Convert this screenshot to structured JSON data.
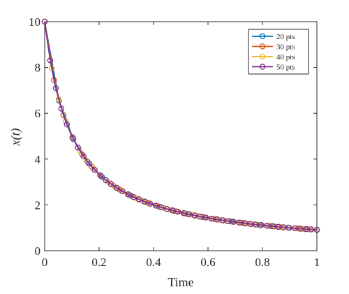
{
  "chart_data": {
    "type": "line",
    "title": "",
    "xlabel": "Time",
    "ylabel": "x(t)",
    "xlim": [
      0,
      1
    ],
    "ylim": [
      0,
      10
    ],
    "xticks": [
      0,
      0.2,
      0.4,
      0.6,
      0.8,
      1
    ],
    "yticks": [
      0,
      2,
      4,
      6,
      8,
      10
    ],
    "x_tick_labels": [
      "0",
      "0.2",
      "0.4",
      "0.6",
      "0.8",
      "1"
    ],
    "y_tick_labels": [
      "0",
      "2",
      "4",
      "6",
      "8",
      "10"
    ],
    "grid": false,
    "legend_position": "top-right",
    "marker": "circle",
    "function_note": "x(t) = 10/(1+10t)",
    "series": [
      {
        "name": "20 pts",
        "color": "#0072BD",
        "x": [
          0,
          0.0526,
          0.1053,
          0.1579,
          0.2105,
          0.2632,
          0.3158,
          0.3684,
          0.4211,
          0.4737,
          0.5263,
          0.5789,
          0.6316,
          0.6842,
          0.7368,
          0.7895,
          0.8421,
          0.8947,
          0.9474,
          1
        ],
        "y": [
          10,
          6.55,
          4.87,
          3.88,
          3.22,
          2.75,
          2.41,
          2.14,
          1.92,
          1.74,
          1.6,
          1.47,
          1.37,
          1.28,
          1.19,
          1.12,
          1.06,
          1.01,
          0.95,
          0.91
        ]
      },
      {
        "name": "30 pts",
        "color": "#D95319",
        "x": [
          0,
          0.0345,
          0.069,
          0.1034,
          0.1379,
          0.1724,
          0.2069,
          0.2414,
          0.2759,
          0.3103,
          0.3448,
          0.3793,
          0.4138,
          0.4483,
          0.4828,
          0.5172,
          0.5517,
          0.5862,
          0.6207,
          0.6552,
          0.6897,
          0.7241,
          0.7586,
          0.7931,
          0.8276,
          0.8621,
          0.8966,
          0.931,
          0.9655,
          1
        ],
        "y": [
          10,
          7.44,
          5.92,
          4.92,
          4.2,
          3.67,
          3.26,
          2.93,
          2.66,
          2.44,
          2.25,
          2.09,
          1.95,
          1.82,
          1.72,
          1.62,
          1.53,
          1.46,
          1.39,
          1.32,
          1.27,
          1.21,
          1.16,
          1.12,
          1.08,
          1.04,
          1.0,
          0.97,
          0.94,
          0.91
        ]
      },
      {
        "name": "40 pts",
        "color": "#EDB120",
        "x": [
          0,
          0.0256,
          0.0513,
          0.0769,
          0.1026,
          0.1282,
          0.1538,
          0.1795,
          0.2051,
          0.2308,
          0.2564,
          0.2821,
          0.3077,
          0.3333,
          0.359,
          0.3846,
          0.4103,
          0.4359,
          0.4615,
          0.4872,
          0.5128,
          0.5385,
          0.5641,
          0.5897,
          0.6154,
          0.641,
          0.6667,
          0.6923,
          0.7179,
          0.7436,
          0.7692,
          0.7949,
          0.8205,
          0.8462,
          0.8718,
          0.8974,
          0.9231,
          0.9487,
          0.9744,
          1
        ],
        "y": [
          10,
          7.96,
          6.61,
          5.65,
          4.94,
          4.38,
          3.94,
          3.58,
          3.28,
          3.02,
          2.81,
          2.62,
          2.45,
          2.31,
          2.18,
          2.06,
          1.96,
          1.87,
          1.78,
          1.7,
          1.63,
          1.57,
          1.51,
          1.45,
          1.4,
          1.35,
          1.3,
          1.26,
          1.22,
          1.19,
          1.15,
          1.12,
          1.09,
          1.06,
          1.03,
          1.0,
          0.98,
          0.95,
          0.93,
          0.91
        ]
      },
      {
        "name": "50 pts",
        "color": "#7E2F8E",
        "x": [
          0,
          0.0204,
          0.0408,
          0.0612,
          0.0816,
          0.102,
          0.1224,
          0.1429,
          0.1633,
          0.1837,
          0.2041,
          0.2245,
          0.2449,
          0.2653,
          0.2857,
          0.3061,
          0.3265,
          0.3469,
          0.3673,
          0.3878,
          0.4082,
          0.4286,
          0.449,
          0.4694,
          0.4898,
          0.5102,
          0.5306,
          0.551,
          0.5714,
          0.5918,
          0.6122,
          0.6327,
          0.6531,
          0.6735,
          0.6939,
          0.7143,
          0.7347,
          0.7551,
          0.7755,
          0.7959,
          0.8163,
          0.8367,
          0.8571,
          0.8776,
          0.898,
          0.9184,
          0.9388,
          0.9592,
          0.9796,
          1
        ],
        "y": [
          10,
          8.31,
          7.1,
          6.2,
          5.51,
          4.95,
          4.5,
          4.12,
          3.8,
          3.52,
          3.29,
          3.08,
          2.9,
          2.74,
          2.59,
          2.46,
          2.34,
          2.24,
          2.14,
          2.05,
          1.97,
          1.89,
          1.82,
          1.76,
          1.7,
          1.64,
          1.59,
          1.54,
          1.49,
          1.45,
          1.4,
          1.36,
          1.33,
          1.29,
          1.26,
          1.23,
          1.2,
          1.17,
          1.14,
          1.12,
          1.09,
          1.07,
          1.04,
          1.02,
          1.0,
          0.98,
          0.96,
          0.94,
          0.93,
          0.91
        ]
      }
    ]
  }
}
